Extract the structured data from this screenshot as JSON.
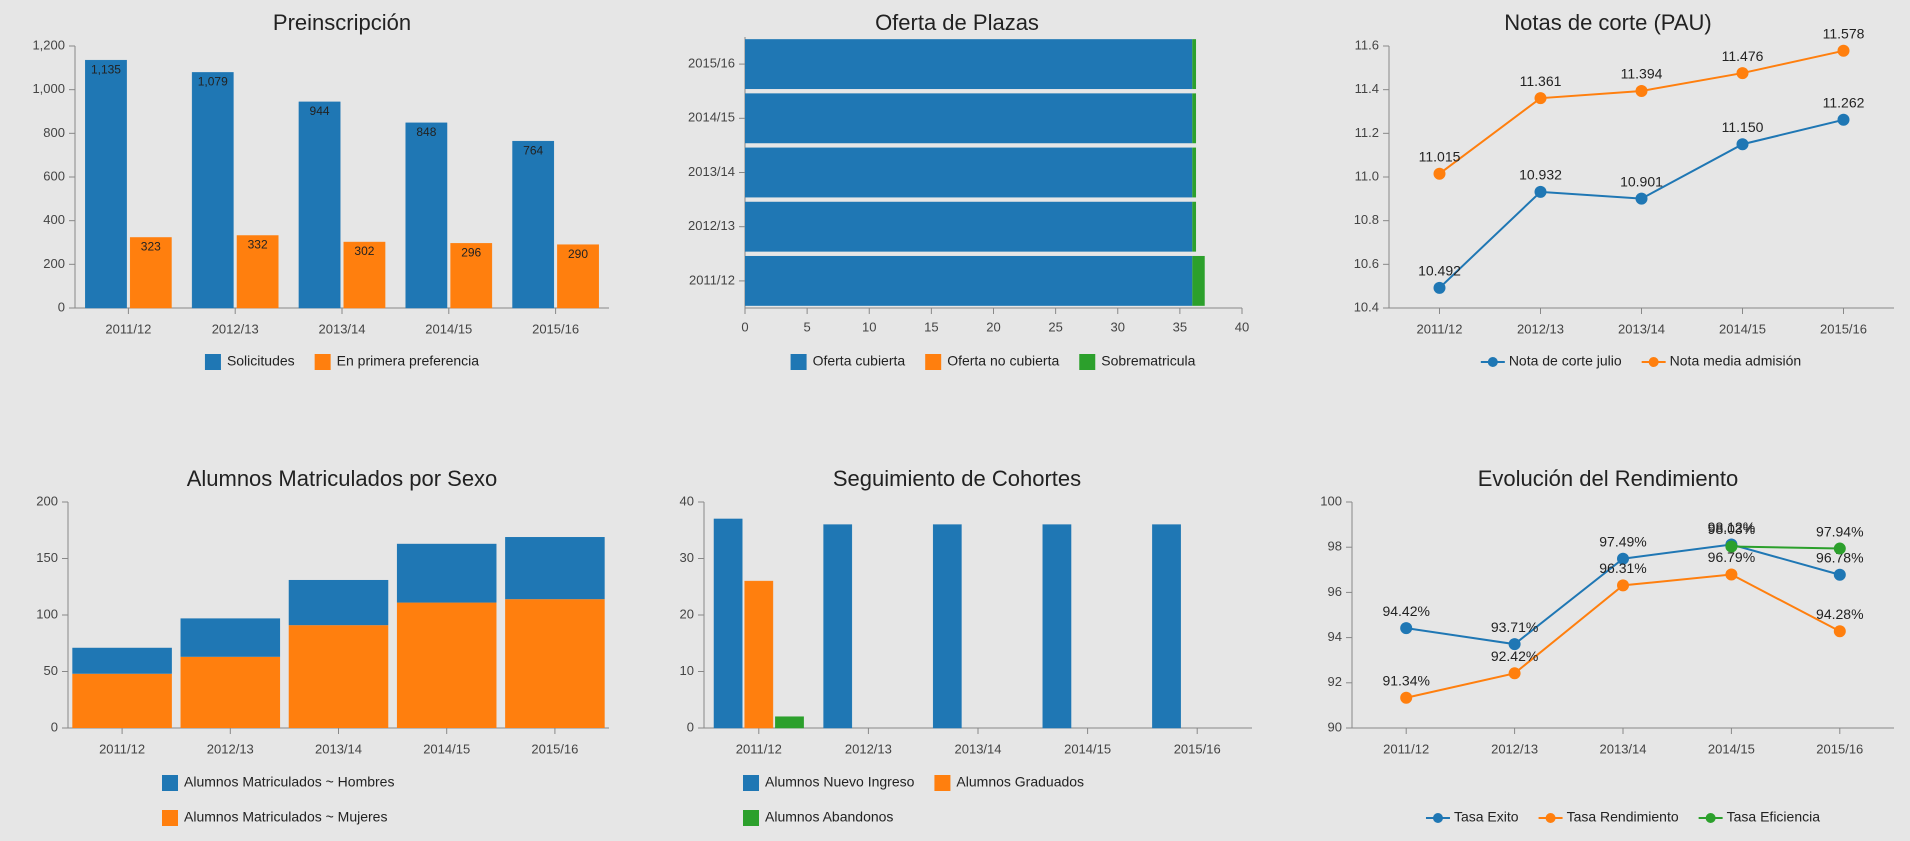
{
  "chart_data": [
    {
      "type": "bar",
      "title": "Preinscripción",
      "categories": [
        "2011/12",
        "2012/13",
        "2013/14",
        "2014/15",
        "2015/16"
      ],
      "series": [
        {
          "name": "Solicitudes",
          "color": "#1f77b4",
          "values": [
            1135,
            1079,
            944,
            848,
            764
          ],
          "value_labels": [
            "1,135",
            "1,079",
            "944",
            "848",
            "764"
          ]
        },
        {
          "name": "En primera preferencia",
          "color": "#ff7f0e",
          "values": [
            323,
            332,
            302,
            296,
            290
          ]
        }
      ],
      "ylim": [
        0,
        1200
      ],
      "yticks": [
        0,
        200,
        400,
        600,
        800,
        {
          "value": 1000,
          "label": "1,000"
        },
        {
          "value": 1200,
          "label": "1,200"
        }
      ]
    },
    {
      "type": "horizontal_bar",
      "title": "Oferta de Plazas",
      "stacked": true,
      "categories": [
        "2011/12",
        "2012/13",
        "2013/14",
        "2014/15",
        "2015/16"
      ],
      "series": [
        {
          "name": "Oferta cubierta",
          "color": "#1f77b4",
          "values": [
            36,
            36,
            36,
            36,
            36
          ]
        },
        {
          "name": "Oferta no cubierta",
          "color": "#ff7f0e",
          "values": [
            0,
            0,
            0,
            0,
            0
          ]
        },
        {
          "name": "Sobrematricula",
          "color": "#2ca02c",
          "values": [
            1,
            0.3,
            0.3,
            0.3,
            0.3
          ]
        }
      ],
      "xlim": [
        0,
        40
      ],
      "xticks": [
        0,
        5,
        10,
        15,
        20,
        25,
        30,
        35,
        40
      ]
    },
    {
      "type": "line",
      "title": "Notas de corte (PAU)",
      "categories": [
        "2011/12",
        "2012/13",
        "2013/14",
        "2014/15",
        "2015/16"
      ],
      "series": [
        {
          "name": "Nota de corte julio",
          "color": "#1f77b4",
          "values": [
            10.492,
            10.932,
            10.901,
            11.15,
            11.262
          ],
          "value_labels": [
            "10.492",
            "10.932",
            "10.901",
            "11.150",
            "11.262"
          ]
        },
        {
          "name": "Nota media admisión",
          "color": "#ff7f0e",
          "values": [
            11.015,
            11.361,
            11.394,
            11.476,
            11.578
          ],
          "value_labels": [
            "11.015",
            "11.361",
            "11.394",
            "11.476",
            "11.578"
          ]
        }
      ],
      "ylim": [
        10.4,
        11.6
      ],
      "yticks": [
        {
          "value": 10.4,
          "label": "10.4"
        },
        {
          "value": 10.6,
          "label": "10.6"
        },
        {
          "value": 10.8,
          "label": "10.8"
        },
        {
          "value": 11.0,
          "label": "11.0"
        },
        {
          "value": 11.2,
          "label": "11.2"
        },
        {
          "value": 11.4,
          "label": "11.4"
        },
        {
          "value": 11.6,
          "label": "11.6"
        }
      ]
    },
    {
      "type": "bar",
      "title": "Alumnos Matriculados por Sexo",
      "stacked": true,
      "categories": [
        "2011/12",
        "2012/13",
        "2013/14",
        "2014/15",
        "2015/16"
      ],
      "series": [
        {
          "name": "Alumnos Matriculados ~ Hombres",
          "color": "#1f77b4",
          "values": [
            23,
            34,
            40,
            52,
            55
          ]
        },
        {
          "name": "Alumnos Matriculados ~ Mujeres",
          "color": "#ff7f0e",
          "values": [
            48,
            63,
            91,
            111,
            114
          ]
        }
      ],
      "ylim": [
        0,
        200
      ],
      "yticks": [
        0,
        50,
        100,
        150,
        200
      ]
    },
    {
      "type": "bar",
      "title": "Seguimiento de Cohortes",
      "categories": [
        "2011/12",
        "2012/13",
        "2013/14",
        "2014/15",
        "2015/16"
      ],
      "series": [
        {
          "name": "Alumnos Nuevo Ingreso",
          "color": "#1f77b4",
          "values": [
            37,
            36,
            36,
            36,
            36
          ]
        },
        {
          "name": "Alumnos Graduados",
          "color": "#ff7f0e",
          "values": [
            26,
            0,
            0,
            0,
            0
          ]
        },
        {
          "name": "Alumnos Abandonos",
          "color": "#2ca02c",
          "values": [
            2,
            0,
            0,
            0,
            0
          ]
        }
      ],
      "ylim": [
        0,
        40
      ],
      "yticks": [
        0,
        10,
        20,
        30,
        40
      ]
    },
    {
      "type": "line",
      "title": "Evolución del Rendimiento",
      "categories": [
        "2011/12",
        "2012/13",
        "2013/14",
        "2014/15",
        "2015/16"
      ],
      "series": [
        {
          "name": "Tasa Exito",
          "color": "#1f77b4",
          "values": [
            94.42,
            93.71,
            97.49,
            98.12,
            96.78
          ],
          "value_labels": [
            "94.42%",
            "93.71%",
            "97.49%",
            "98.12%",
            "96.78%"
          ]
        },
        {
          "name": "Tasa Rendimiento",
          "color": "#ff7f0e",
          "values": [
            91.34,
            92.42,
            96.31,
            96.79,
            94.28
          ],
          "value_labels": [
            "91.34%",
            "92.42%",
            "96.31%",
            "96.79%",
            "94.28%"
          ]
        },
        {
          "name": "Tasa Eficiencia",
          "color": "#2ca02c",
          "values": [
            null,
            null,
            null,
            98.03,
            97.94
          ],
          "value_labels": [
            null,
            null,
            null,
            "98.03%",
            "97.94%"
          ]
        }
      ],
      "ylim": [
        90,
        100
      ],
      "yticks": [
        90,
        92,
        94,
        96,
        98,
        100
      ]
    }
  ]
}
